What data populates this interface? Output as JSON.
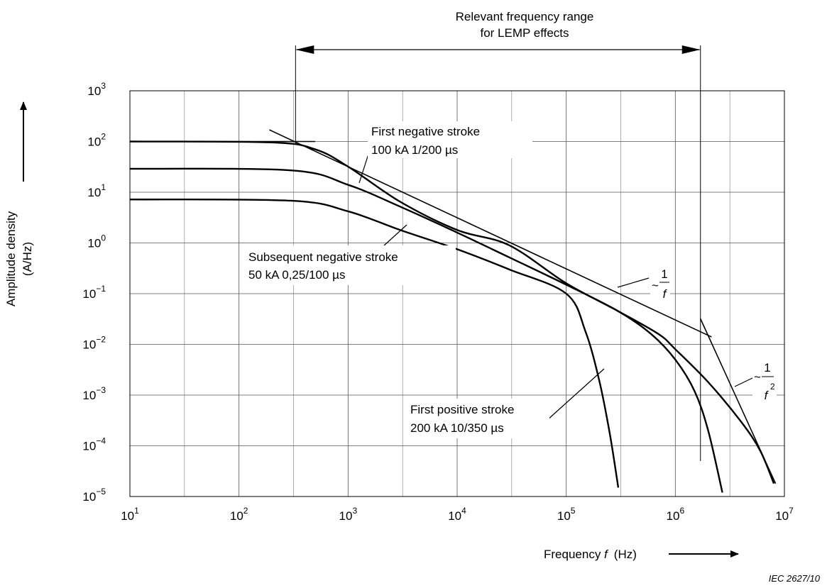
{
  "chart_data": {
    "type": "line",
    "x_scale": "log",
    "y_scale": "log",
    "xlim": [
      10,
      10000000
    ],
    "ylim": [
      1e-05,
      1000
    ],
    "grid": true,
    "x_ticks": [
      1,
      2,
      3,
      4,
      5,
      6,
      7
    ],
    "y_ticks": [
      -5,
      -4,
      -3,
      -2,
      -1,
      0,
      1,
      2,
      3
    ],
    "tick_base": "10",
    "xlabel": {
      "prefix": "Frequency ",
      "var": "f",
      "unit": "(Hz)"
    },
    "ylabel": {
      "line1": "Amplitude density",
      "line2": "(A/Hz)"
    },
    "range_annotation": {
      "line1": "Relevant frequency range",
      "line2": "for LEMP effects",
      "from_hz": 330,
      "to_hz": 1700000
    },
    "series": [
      {
        "name": "First negative stroke 100 kA 1/200 µs",
        "points": [
          [
            10,
            100
          ],
          [
            200,
            96
          ],
          [
            500,
            70
          ],
          [
            1000,
            32
          ],
          [
            3000,
            6.5
          ],
          [
            10000,
            1.8
          ],
          [
            30000,
            0.9
          ],
          [
            100000,
            0.16
          ],
          [
            300000,
            0.045
          ],
          [
            700000,
            0.016
          ],
          [
            1000000,
            0.008
          ],
          [
            2000000,
            0.0018
          ],
          [
            4000000,
            0.0003
          ],
          [
            6000000,
            8e-05
          ],
          [
            8000000,
            1.8e-05
          ]
        ]
      },
      {
        "name": "Subsequent negative stroke 50 kA 0,25/100 µs",
        "points": [
          [
            10,
            29
          ],
          [
            300,
            27
          ],
          [
            1000,
            14
          ],
          [
            3000,
            5.2
          ],
          [
            10000,
            1.6
          ],
          [
            30000,
            0.52
          ],
          [
            100000,
            0.15
          ],
          [
            300000,
            0.045
          ],
          [
            600000,
            0.016
          ],
          [
            1000000,
            0.005
          ],
          [
            1500000,
            0.0012
          ],
          [
            2000000,
            0.0002
          ],
          [
            2700000,
            1.2e-05
          ]
        ]
      },
      {
        "name": "First positive stroke 200 kA 10/350 µs",
        "points": [
          [
            10,
            7.2
          ],
          [
            300,
            6.8
          ],
          [
            1000,
            4.2
          ],
          [
            3000,
            1.8
          ],
          [
            10000,
            0.75
          ],
          [
            30000,
            0.3
          ],
          [
            100000,
            0.1
          ],
          [
            150000,
            0.018
          ],
          [
            200000,
            0.002
          ],
          [
            250000,
            0.00018
          ],
          [
            300000,
            1.5e-05
          ]
        ]
      }
    ],
    "asymptotes": [
      {
        "name": "~1/f",
        "points": [
          [
            10,
            100
          ],
          [
            500,
            100
          ]
        ]
      },
      {
        "name": "~1/f",
        "points": [
          [
            190,
            170
          ],
          [
            2150000,
            0.014
          ]
        ]
      },
      {
        "name": "~1/f²",
        "points": [
          [
            1700000,
            0.032
          ],
          [
            8300000,
            1.8e-05
          ]
        ]
      }
    ],
    "annotations": [
      {
        "id": "first-negative",
        "lines": [
          "First negative stroke",
          "100 kA  1/200 µs"
        ]
      },
      {
        "id": "subsequent-negative",
        "lines": [
          "Subsequent negative stroke",
          "50 kA  0,25/100 µs"
        ]
      },
      {
        "id": "first-positive",
        "lines": [
          "First positive stroke",
          "200 kA  10/350 µs"
        ]
      }
    ],
    "slope_labels": {
      "inv_f": {
        "tilde": "~",
        "num": "1",
        "den": "f"
      },
      "inv_f2": {
        "tilde": "~",
        "num": "1",
        "den": "f",
        "exp": "2"
      }
    },
    "credit": "IEC  2627/10"
  }
}
